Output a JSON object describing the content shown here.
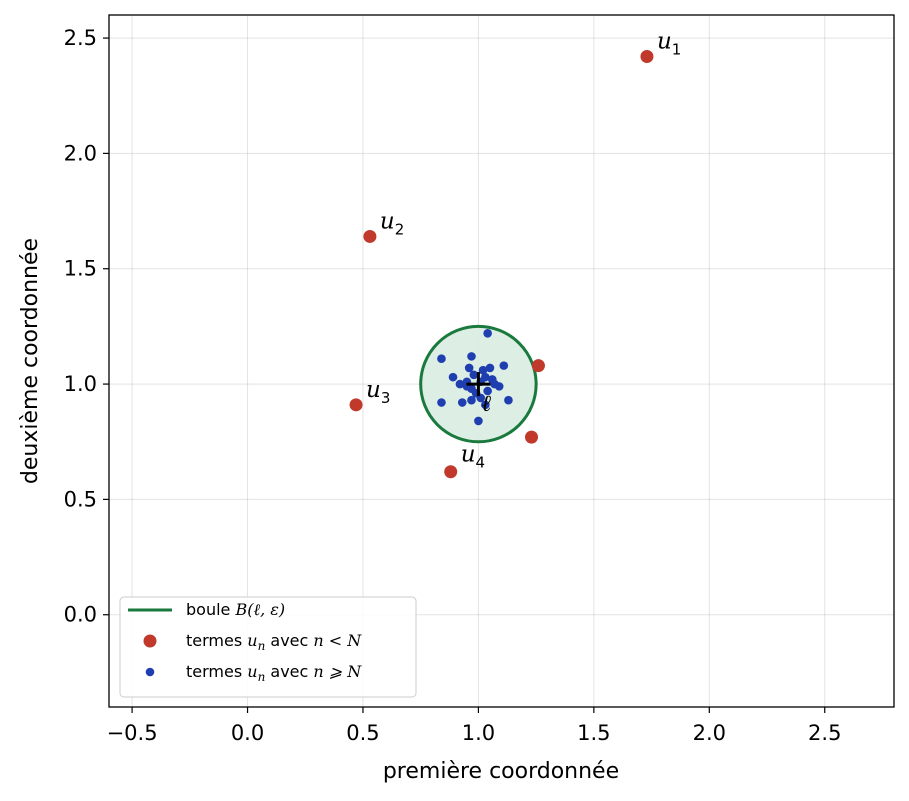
{
  "chart_data": {
    "type": "scatter",
    "xlabel": "première coordonnée",
    "ylabel": "deuxième coordonnée",
    "xlim": [
      -0.6,
      2.8
    ],
    "ylim": [
      -0.4,
      2.6
    ],
    "x_ticks": [
      "−0.5",
      "0.0",
      "0.5",
      "1.0",
      "1.5",
      "2.0",
      "2.5"
    ],
    "x_tick_values": [
      -0.5,
      0.0,
      0.5,
      1.0,
      1.5,
      2.0,
      2.5
    ],
    "y_ticks": [
      "0.0",
      "0.5",
      "1.0",
      "1.5",
      "2.0",
      "2.5"
    ],
    "y_tick_values": [
      0.0,
      0.5,
      1.0,
      1.5,
      2.0,
      2.5
    ],
    "grid": true,
    "legend_placement": "lower-left",
    "colors": {
      "ball": "#1a7a3e",
      "ball_fill": "#d9ece1",
      "early_terms": "#c0392b",
      "late_terms": "#1f3fb0",
      "limit_marker": "#000000"
    },
    "ball": {
      "center": [
        1.0,
        1.0
      ],
      "radius": 0.25
    },
    "limit": {
      "x": 1.0,
      "y": 1.0,
      "label": "ℓ"
    },
    "series": [
      {
        "name": "boule B(ℓ, ε)",
        "legend_parts": [
          "boule ",
          "B(ℓ, ε)"
        ],
        "kind": "ball"
      },
      {
        "name": "termes u_n avec n < N",
        "legend_parts": [
          "termes ",
          "u",
          "n",
          " avec ",
          "n < N"
        ],
        "kind": "early",
        "points": [
          {
            "x": 1.73,
            "y": 2.42
          },
          {
            "x": 0.53,
            "y": 1.64
          },
          {
            "x": 0.47,
            "y": 0.91
          },
          {
            "x": 0.88,
            "y": 0.62
          },
          {
            "x": 1.26,
            "y": 1.08
          },
          {
            "x": 1.23,
            "y": 0.77
          }
        ]
      },
      {
        "name": "termes u_n avec n ⩾ N",
        "legend_parts": [
          "termes ",
          "u",
          "n",
          " avec ",
          "n ⩾ N"
        ],
        "kind": "late",
        "points": [
          {
            "x": 1.04,
            "y": 1.22
          },
          {
            "x": 0.84,
            "y": 1.11
          },
          {
            "x": 0.97,
            "y": 1.12
          },
          {
            "x": 0.96,
            "y": 1.07
          },
          {
            "x": 1.05,
            "y": 1.07
          },
          {
            "x": 1.11,
            "y": 1.08
          },
          {
            "x": 1.02,
            "y": 1.06
          },
          {
            "x": 0.89,
            "y": 1.03
          },
          {
            "x": 0.98,
            "y": 1.04
          },
          {
            "x": 1.03,
            "y": 1.03
          },
          {
            "x": 1.06,
            "y": 1.02
          },
          {
            "x": 0.92,
            "y": 1.0
          },
          {
            "x": 0.95,
            "y": 1.01
          },
          {
            "x": 1.01,
            "y": 1.01
          },
          {
            "x": 1.09,
            "y": 0.99
          },
          {
            "x": 0.97,
            "y": 0.98
          },
          {
            "x": 1.04,
            "y": 0.97
          },
          {
            "x": 0.99,
            "y": 0.96
          },
          {
            "x": 0.93,
            "y": 0.92
          },
          {
            "x": 1.01,
            "y": 0.94
          },
          {
            "x": 0.84,
            "y": 0.92
          },
          {
            "x": 1.13,
            "y": 0.93
          },
          {
            "x": 0.97,
            "y": 0.93
          },
          {
            "x": 1.03,
            "y": 0.91
          },
          {
            "x": 1.0,
            "y": 0.84
          },
          {
            "x": 0.95,
            "y": 0.99
          },
          {
            "x": 1.07,
            "y": 1.0
          }
        ]
      }
    ],
    "annotations": [
      {
        "base": "u",
        "sub": "1",
        "x": 1.73,
        "y": 2.42
      },
      {
        "base": "u",
        "sub": "2",
        "x": 0.53,
        "y": 1.64
      },
      {
        "base": "u",
        "sub": "3",
        "x": 0.47,
        "y": 0.91
      },
      {
        "base": "u",
        "sub": "4",
        "x": 0.88,
        "y": 0.62
      }
    ]
  }
}
